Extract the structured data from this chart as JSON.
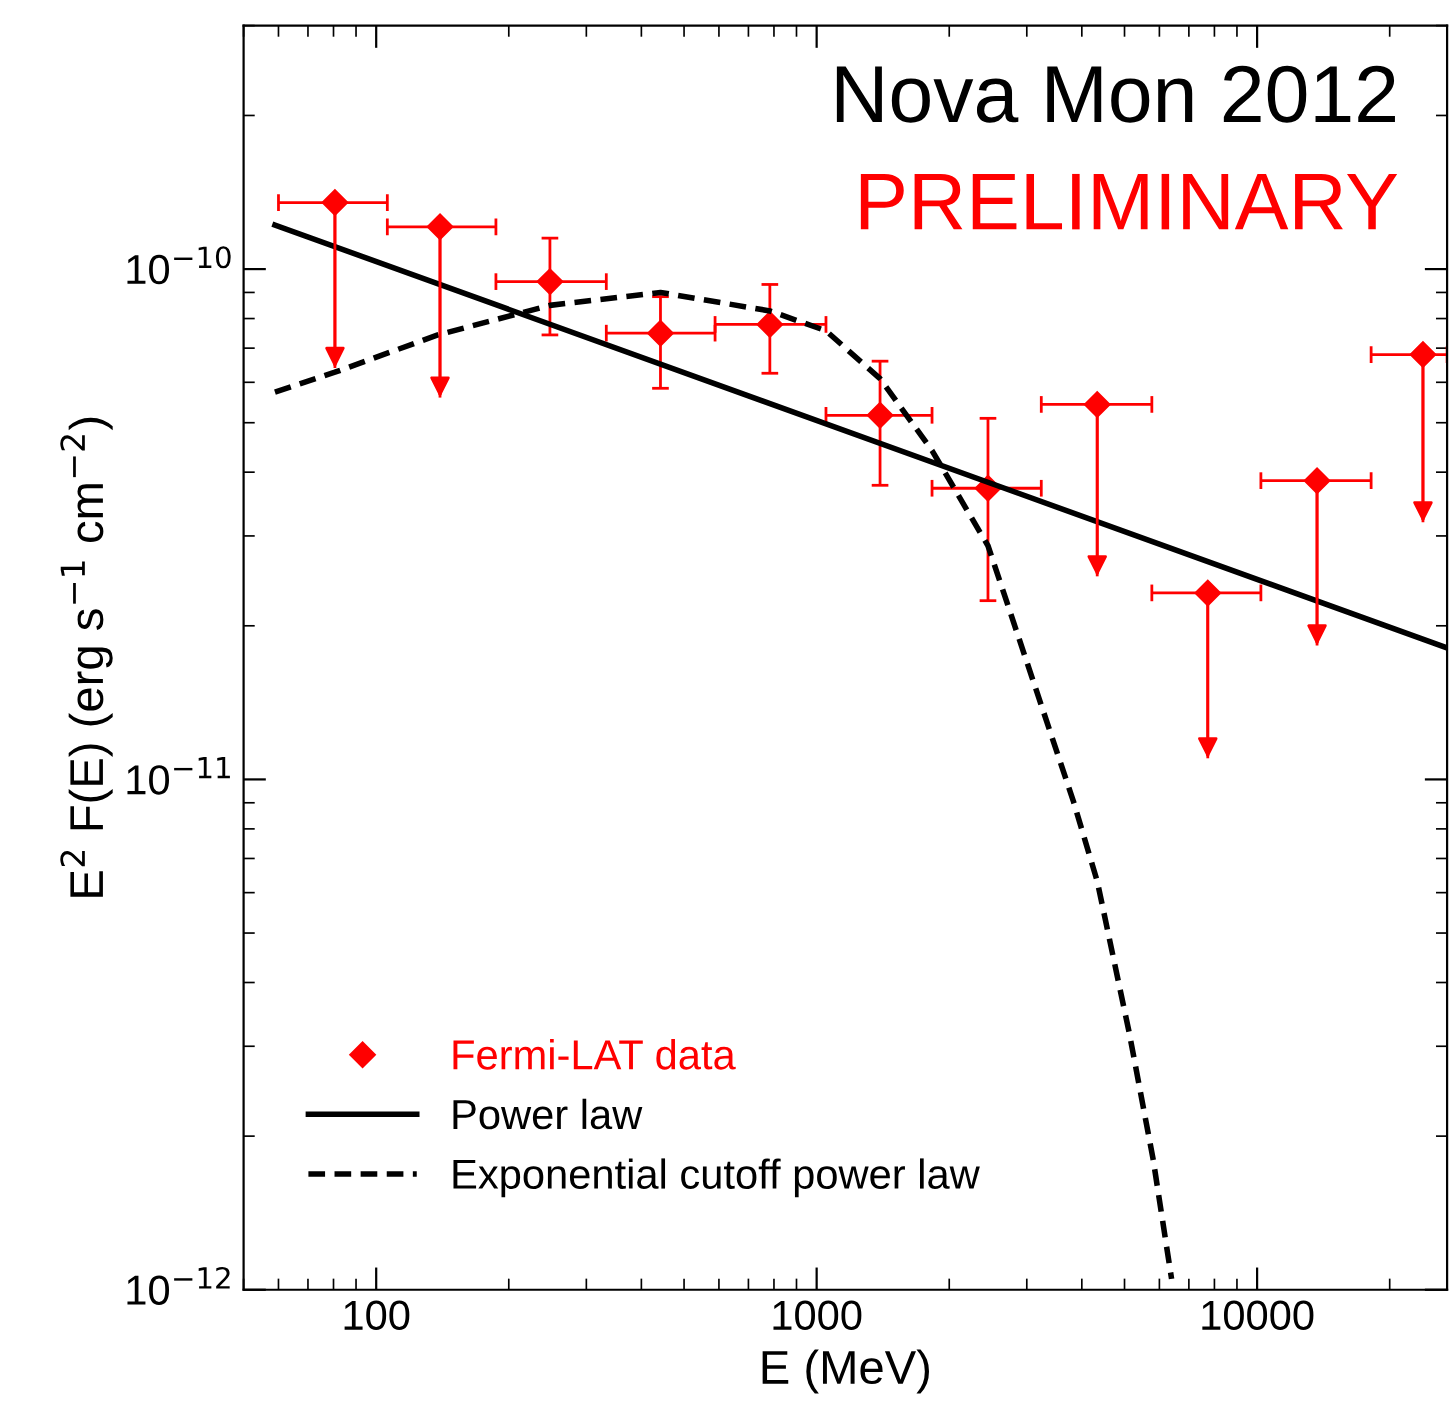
{
  "chart_data": {
    "type": "scatter",
    "xlabel": "E (MeV)",
    "ylabel": "E$^{2}$ F(E) (erg s$^{−1}$ cm$^{−2}$)",
    "log": "xy",
    "xlim": [
      50,
      27000
    ],
    "ylim": [
      1e-12,
      3e-10
    ],
    "xticks": [
      100,
      1000,
      10000
    ],
    "yticks": [
      {
        "value": 1e-12,
        "label": "10$^{−12}$"
      },
      {
        "value": 1e-11,
        "label": "10$^{−11}$"
      },
      {
        "value": 1e-10,
        "label": "10$^{−10}$"
      }
    ],
    "annotations": [
      "Nova Mon 2012",
      "PRELIMINARY"
    ],
    "legend": "bottom left",
    "grid": false,
    "series": [
      {
        "name": "Fermi-LAT data",
        "color": "#ff0000",
        "marker": "diamond",
        "x": [
          80.6,
          139.6,
          248,
          442,
          783,
          1393,
          2449,
          4335,
          7727,
          13680,
          23800
        ],
        "values": [
          1.35e-10,
          1.21e-10,
          9.45e-11,
          7.49e-11,
          7.79e-11,
          5.17e-11,
          3.72e-11,
          5.43e-11,
          2.32e-11,
          3.85e-11,
          6.8e-11
        ],
        "errors": [
          [
            6.4e-11,
            1.35e-10
          ],
          [
            5.6e-11,
            1.21e-10
          ],
          [
            7.43e-11,
            1.15e-10
          ],
          [
            5.84e-11,
            8.83e-11
          ],
          [
            6.25e-11,
            9.33e-11
          ],
          [
            3.77e-11,
            6.6e-11
          ],
          [
            2.24e-11,
            5.1e-11
          ],
          [
            2.5e-11,
            5.43e-11
          ],
          [
            1.1e-11,
            2.32e-11
          ],
          [
            1.83e-11,
            3.85e-11
          ],
          [
            3.19e-11,
            6.8e-11
          ]
        ],
        "xerrors": [
          [
            60,
            106
          ],
          [
            106,
            187
          ],
          [
            187,
            333
          ],
          [
            333,
            588
          ],
          [
            588,
            1050
          ],
          [
            1050,
            1828
          ],
          [
            1828,
            3236
          ],
          [
            3236,
            5768
          ],
          [
            5768,
            10200
          ],
          [
            10200,
            18150
          ],
          [
            18150,
            27000
          ]
        ]
      },
      {
        "name": "Power law",
        "type": "line",
        "color": "#000000",
        "line_style": "solid",
        "marker": "none",
        "x": [
          58.9,
          27000
        ],
        "values": [
          1.22e-10,
          1.81e-11
        ]
      },
      {
        "name": "Exponential cutoff power law",
        "type": "line",
        "color": "#000000",
        "line_style": "dashed",
        "marker": "none",
        "x": [
          58.9,
          80.6,
          138,
          248,
          442,
          783,
          1050,
          1393,
          1828,
          2449,
          3828,
          4335,
          5124,
          5808,
          6395
        ],
        "values": [
          5.74e-11,
          6.28e-11,
          7.43e-11,
          8.49e-11,
          9e-11,
          8.28e-11,
          7.57e-11,
          6.1e-11,
          4.41e-11,
          2.87e-11,
          9.06e-12,
          6.32e-12,
          3.19e-12,
          1.8e-12,
          1.05e-12
        ]
      }
    ]
  }
}
